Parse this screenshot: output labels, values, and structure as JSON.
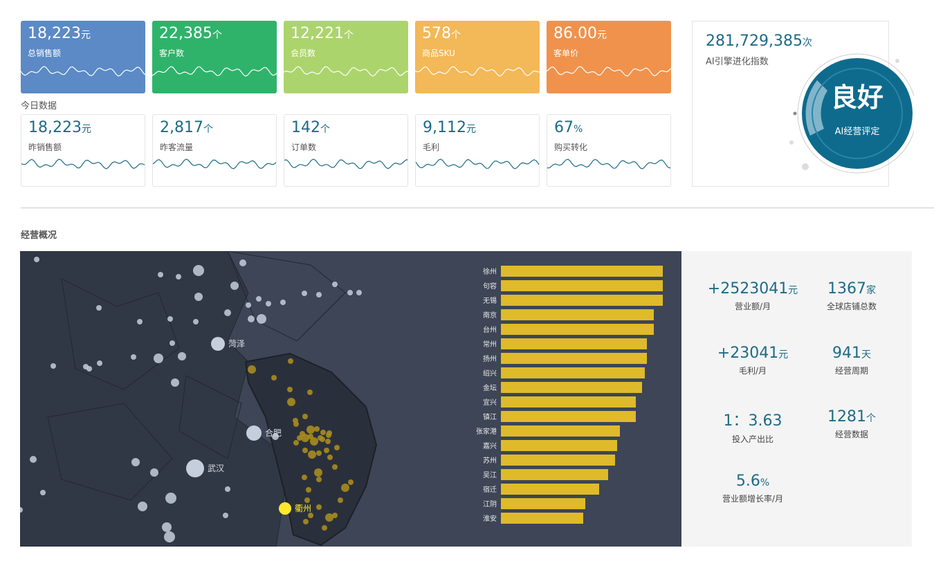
{
  "kpi_cards": [
    {
      "value": "18,223",
      "unit": "元",
      "label": "总销售额",
      "color": "#5b8ac6"
    },
    {
      "value": "22,385",
      "unit": "个",
      "label": "客户数",
      "color": "#2fb36b"
    },
    {
      "value": "12,221",
      "unit": "个",
      "label": "会员数",
      "color": "#acd46d"
    },
    {
      "value": "578",
      "unit": "个",
      "label": "商品SKU",
      "color": "#f3b857"
    },
    {
      "value": "86.00",
      "unit": "元",
      "label": "客单价",
      "color": "#f0924c"
    }
  ],
  "today": {
    "title": "今日数据",
    "cards": [
      {
        "value": "18,223",
        "unit": "元",
        "label": "昨销售额"
      },
      {
        "value": "2,817",
        "unit": "个",
        "label": "昨客流量"
      },
      {
        "value": "142",
        "unit": "个",
        "label": "订单数"
      },
      {
        "value": "9,112",
        "unit": "元",
        "label": "毛利"
      },
      {
        "value": "67",
        "unit": "%",
        "label": "购买转化"
      }
    ]
  },
  "ai_card": {
    "value": "281,729,385",
    "unit": "次",
    "label": "AI引擎进化指数",
    "rating": "良好",
    "rating_label": "AI经营评定"
  },
  "section_title": "经营概况",
  "map": {
    "cities": [
      "菏泽",
      "合肥",
      "武汉",
      "衢州"
    ]
  },
  "bar_chart": {
    "type": "bar",
    "categories": [
      "徐州",
      "句容",
      "无锡",
      "南京",
      "台州",
      "常州",
      "扬州",
      "绍兴",
      "金坛",
      "宜兴",
      "镇江",
      "张家港",
      "嘉兴",
      "苏州",
      "吴江",
      "宿迁",
      "江阴",
      "淮安"
    ],
    "values": [
      234,
      234,
      234,
      221,
      221,
      211,
      211,
      208,
      204,
      195,
      195,
      172,
      168,
      165,
      155,
      142,
      122,
      119
    ],
    "color": "#dfba2a"
  },
  "stats": [
    {
      "value": "+2523041",
      "unit": "元",
      "label": "营业额/月"
    },
    {
      "value": "1367",
      "unit": "家",
      "label": "全球店铺总数"
    },
    {
      "value": "+23041",
      "unit": "元",
      "label": "毛利/月"
    },
    {
      "value": "941",
      "unit": "天",
      "label": "经营周期"
    },
    {
      "value": "1：3.63",
      "unit": "",
      "label": "投入产出比"
    },
    {
      "value": "1281",
      "unit": "个",
      "label": "经营数据"
    },
    {
      "value": "5.6",
      "unit": "%",
      "label": "营业额增长率/月"
    }
  ]
}
